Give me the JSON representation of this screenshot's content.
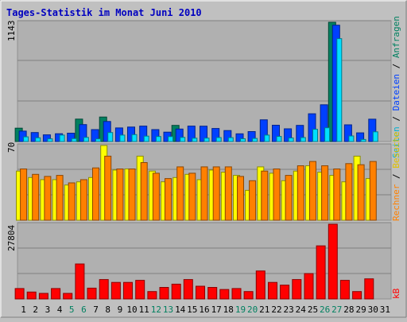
{
  "title": "Tages-Statistik im Monat Juni 2010",
  "days": [
    "1",
    "2",
    "3",
    "4",
    "5",
    "6",
    "7",
    "8",
    "9",
    "10",
    "11",
    "12",
    "13",
    "14",
    "15",
    "16",
    "17",
    "18",
    "19",
    "20",
    "21",
    "22",
    "23",
    "24",
    "25",
    "26",
    "27",
    "28",
    "29",
    "30",
    "31"
  ],
  "weekend_days": [
    "5",
    "6",
    "12",
    "13",
    "19",
    "20",
    "26",
    "27"
  ],
  "day_colors": {
    "weekday": "#000000",
    "weekend": "#008060"
  },
  "chart_data": [
    {
      "type": "bar",
      "max_label": "1143",
      "ylim": [
        0,
        1143
      ],
      "series": [
        {
          "name": "Anfragen",
          "color": "#008060",
          "values": [
            128,
            0,
            0,
            0,
            0,
            215,
            0,
            235,
            0,
            0,
            0,
            0,
            0,
            155,
            0,
            0,
            0,
            0,
            0,
            0,
            0,
            0,
            0,
            0,
            0,
            0,
            1143,
            0,
            0,
            0,
            0
          ]
        },
        {
          "name": "Dateien",
          "color": "#0040ff",
          "values": [
            100,
            86,
            64,
            75,
            80,
            162,
            114,
            192,
            130,
            139,
            148,
            114,
            90,
            120,
            148,
            147,
            125,
            105,
            74,
            95,
            208,
            156,
            122,
            155,
            266,
            352,
            1115,
            160,
            83,
            214,
            0
          ]
        },
        {
          "name": "Seiten",
          "color": "#00e0ff",
          "values": [
            45,
            36,
            26,
            62,
            28,
            40,
            25,
            86,
            62,
            66,
            52,
            48,
            47,
            40,
            32,
            33,
            38,
            37,
            27,
            30,
            62,
            49,
            34,
            38,
            117,
            132,
            986,
            53,
            20,
            93,
            0
          ]
        }
      ],
      "legend_label": "Seiten / Dateien / Anfragen"
    },
    {
      "type": "bar",
      "max_label": "70",
      "ylim": [
        0,
        70
      ],
      "series": [
        {
          "name": "Besuche",
          "color": "#ffff00",
          "values": [
            46,
            40,
            38,
            38,
            33,
            36,
            40,
            70,
            47,
            48,
            60,
            46,
            36,
            40,
            43,
            38,
            47,
            45,
            42,
            28,
            50,
            44,
            37,
            46,
            51,
            45,
            42,
            36,
            60,
            39,
            0
          ]
        },
        {
          "name": "Rechner",
          "color": "#ff8000",
          "values": [
            48,
            43,
            41,
            42,
            35,
            38,
            49,
            60,
            48,
            48,
            54,
            44,
            39,
            50,
            44,
            50,
            50,
            50,
            41,
            37,
            46,
            48,
            42,
            51,
            55,
            51,
            48,
            53,
            52,
            55,
            0
          ]
        }
      ],
      "legend_label_a": "Rechner",
      "legend_label_b": "Besuche"
    },
    {
      "type": "bar",
      "max_label": "27804",
      "ylim": [
        0,
        27804
      ],
      "series": [
        {
          "name": "kB",
          "color": "#ff0000",
          "values": [
            3865,
            2577,
            2061,
            3865,
            2061,
            13000,
            4036,
            7214,
            6141,
            6141,
            6915,
            2749,
            4294,
            5497,
            7214,
            4723,
            4294,
            3521,
            3865,
            2749,
            10409,
            6141,
            5153,
            7214,
            9450,
            19758,
            27804,
            6915,
            2749,
            7471,
            0
          ]
        }
      ],
      "legend_label": "kB"
    }
  ]
}
